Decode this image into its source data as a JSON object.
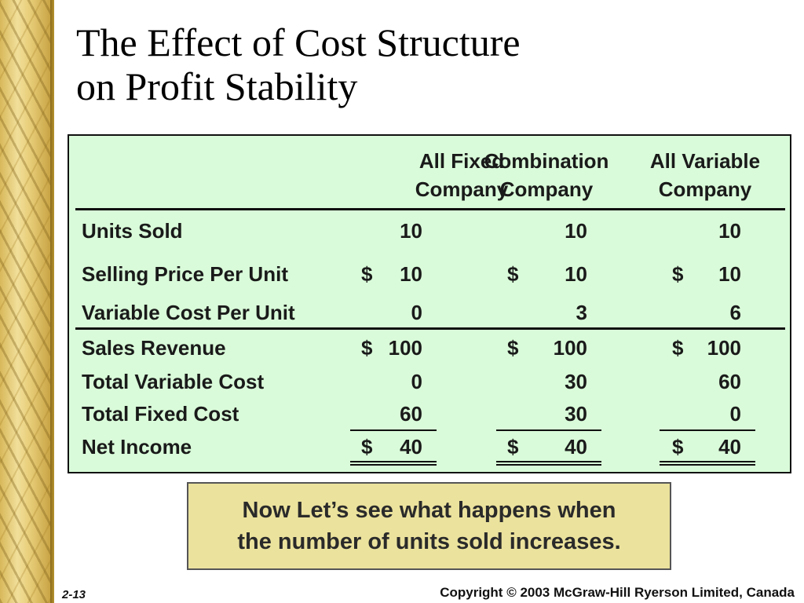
{
  "slide": {
    "title_line1": "The Effect of Cost Structure",
    "title_line2": "on Profit Stability",
    "columns": [
      {
        "line1": "All Fixed",
        "line2": "Company"
      },
      {
        "line1": "Combination",
        "line2": "Company"
      },
      {
        "line1": "All Variable",
        "line2": "Company"
      }
    ],
    "rows": [
      {
        "label": "Units Sold",
        "cells": [
          {
            "sign": "",
            "value": "10"
          },
          {
            "sign": "",
            "value": "10"
          },
          {
            "sign": "",
            "value": "10"
          }
        ]
      },
      {
        "label": "Selling Price Per Unit",
        "cells": [
          {
            "sign": "$",
            "value": "10"
          },
          {
            "sign": "$",
            "value": "10"
          },
          {
            "sign": "$",
            "value": "10"
          }
        ]
      },
      {
        "label": "Variable Cost Per Unit",
        "cells": [
          {
            "sign": "",
            "value": "0"
          },
          {
            "sign": "",
            "value": "3"
          },
          {
            "sign": "",
            "value": "6"
          }
        ]
      },
      {
        "label": "Sales Revenue",
        "cells": [
          {
            "sign": "$",
            "value": "100"
          },
          {
            "sign": "$",
            "value": "100"
          },
          {
            "sign": "$",
            "value": "100"
          }
        ]
      },
      {
        "label": "Total Variable Cost",
        "cells": [
          {
            "sign": "",
            "value": "0"
          },
          {
            "sign": "",
            "value": "30"
          },
          {
            "sign": "",
            "value": "60"
          }
        ]
      },
      {
        "label": "Total Fixed Cost",
        "cells": [
          {
            "sign": "",
            "value": "60"
          },
          {
            "sign": "",
            "value": "30"
          },
          {
            "sign": "",
            "value": "0"
          }
        ]
      },
      {
        "label": "Net Income",
        "cells": [
          {
            "sign": "$",
            "value": "40"
          },
          {
            "sign": "$",
            "value": "40"
          },
          {
            "sign": "$",
            "value": "40"
          }
        ]
      }
    ],
    "note_line1": "Now Let’s see what happens when",
    "note_line2": "the number of units sold increases.",
    "slide_number": "2-13",
    "copyright": "Copyright © 2003 McGraw-Hill Ryerson Limited, Canada",
    "colors": {
      "table_background": "#d9fbd9",
      "note_background": "#ebe29d",
      "sidebar_gold": "#e7cd78"
    }
  }
}
